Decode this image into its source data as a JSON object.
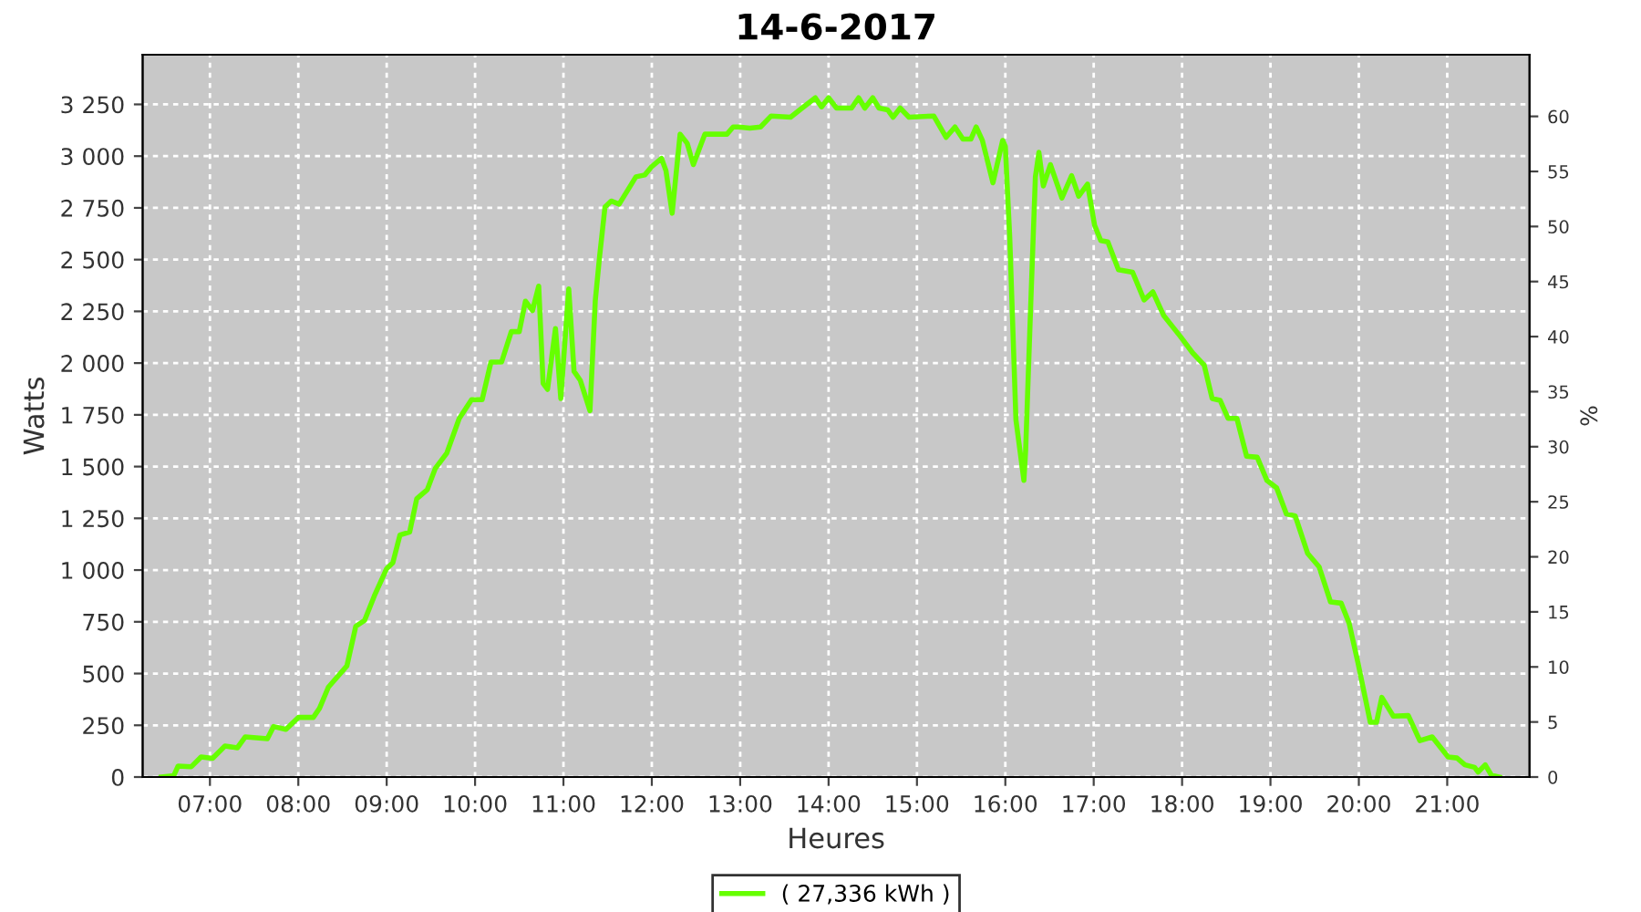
{
  "chart_data": {
    "type": "line",
    "title": "14-6-2017",
    "xlabel": "Heures",
    "ylabel": "Watts",
    "y2label": "%",
    "xlim": [
      6.24,
      21.93
    ],
    "xticks": [
      {
        "value": 7,
        "label": "07:00"
      },
      {
        "value": 8,
        "label": "08:00"
      },
      {
        "value": 9,
        "label": "09:00"
      },
      {
        "value": 10,
        "label": "10:00"
      },
      {
        "value": 11,
        "label": "11:00"
      },
      {
        "value": 12,
        "label": "12:00"
      },
      {
        "value": 13,
        "label": "13:00"
      },
      {
        "value": 14,
        "label": "14:00"
      },
      {
        "value": 15,
        "label": "15:00"
      },
      {
        "value": 16,
        "label": "16:00"
      },
      {
        "value": 17,
        "label": "17:00"
      },
      {
        "value": 18,
        "label": "18:00"
      },
      {
        "value": 19,
        "label": "19:00"
      },
      {
        "value": 20,
        "label": "20:00"
      },
      {
        "value": 21,
        "label": "21:00"
      }
    ],
    "ylim": [
      0,
      3490
    ],
    "yticks": [
      0,
      250,
      500,
      750,
      {
        "value": 1000,
        "label": "1 000"
      },
      {
        "value": 1250,
        "label": "1 250"
      },
      {
        "value": 1500,
        "label": "1 500"
      },
      {
        "value": 1750,
        "label": "1 750"
      },
      {
        "value": 2000,
        "label": "2 000"
      },
      {
        "value": 2250,
        "label": "2 250"
      },
      {
        "value": 2500,
        "label": "2 500"
      },
      {
        "value": 2750,
        "label": "2 750"
      },
      {
        "value": 3000,
        "label": "3 000"
      },
      {
        "value": 3250,
        "label": "3 250"
      }
    ],
    "y2lim": [
      0,
      65.6
    ],
    "y2ticks": [
      0,
      5,
      10,
      15,
      20,
      25,
      30,
      35,
      40,
      45,
      50,
      55,
      60
    ],
    "grid": true,
    "legend": "bottom",
    "marker": "none",
    "line_style": "solid",
    "series": [
      {
        "name": "( 27,336 kWh )",
        "color": "#66ff00",
        "x": [
          6.45,
          6.59,
          6.64,
          6.79,
          6.9,
          7.03,
          7.17,
          7.31,
          7.4,
          7.65,
          7.72,
          7.86,
          8.0,
          8.17,
          8.24,
          8.34,
          8.55,
          8.65,
          8.75,
          8.86,
          9.0,
          9.07,
          9.15,
          9.26,
          9.34,
          9.46,
          9.55,
          9.68,
          9.82,
          9.96,
          10.08,
          10.18,
          10.3,
          10.41,
          10.5,
          10.57,
          10.65,
          10.72,
          10.77,
          10.82,
          10.91,
          10.97,
          11.06,
          11.12,
          11.19,
          11.3,
          11.36,
          11.41,
          11.47,
          11.54,
          11.63,
          11.82,
          11.92,
          12.0,
          12.11,
          12.16,
          12.23,
          12.32,
          12.4,
          12.47,
          12.6,
          12.85,
          12.92,
          12.98,
          13.11,
          13.23,
          13.35,
          13.57,
          13.7,
          13.85,
          13.92,
          14.0,
          14.09,
          14.26,
          14.34,
          14.41,
          14.5,
          14.57,
          14.67,
          14.73,
          14.81,
          14.91,
          15.19,
          15.33,
          15.43,
          15.52,
          15.61,
          15.67,
          15.74,
          15.86,
          15.97,
          16.0,
          16.05,
          16.12,
          16.21,
          16.23,
          16.29,
          16.34,
          16.38,
          16.43,
          16.51,
          16.64,
          16.75,
          16.83,
          16.93,
          17.01,
          17.08,
          17.16,
          17.28,
          17.44,
          17.57,
          17.67,
          17.79,
          17.98,
          18.12,
          18.25,
          18.34,
          18.43,
          18.52,
          18.62,
          18.73,
          18.85,
          18.96,
          19.07,
          19.18,
          19.28,
          19.42,
          19.55,
          19.68,
          19.8,
          19.89,
          19.99,
          20.13,
          20.2,
          20.26,
          20.39,
          20.56,
          20.69,
          20.83,
          21.01,
          21.11,
          21.2,
          21.31,
          21.35,
          21.43,
          21.5,
          21.59
        ],
        "values": [
          0,
          6,
          53,
          50,
          97,
          90,
          150,
          141,
          194,
          185,
          244,
          230,
          288,
          288,
          332,
          434,
          537,
          728,
          757,
          875,
          1007,
          1036,
          1169,
          1184,
          1345,
          1389,
          1491,
          1565,
          1732,
          1823,
          1823,
          2005,
          2005,
          2152,
          2152,
          2299,
          2254,
          2372,
          1902,
          1873,
          2167,
          1829,
          2358,
          1960,
          1917,
          1770,
          2300,
          2519,
          2754,
          2783,
          2768,
          2900,
          2909,
          2950,
          2989,
          2930,
          2724,
          3106,
          3062,
          2959,
          3106,
          3106,
          3141,
          3141,
          3135,
          3141,
          3194,
          3188,
          3232,
          3282,
          3238,
          3282,
          3232,
          3232,
          3282,
          3232,
          3282,
          3232,
          3223,
          3188,
          3232,
          3188,
          3194,
          3091,
          3141,
          3082,
          3082,
          3141,
          3076,
          2871,
          3076,
          3047,
          2607,
          1726,
          1433,
          1580,
          2314,
          2900,
          3018,
          2856,
          2959,
          2798,
          2906,
          2806,
          2865,
          2666,
          2592,
          2586,
          2451,
          2439,
          2305,
          2344,
          2231,
          2129,
          2049,
          1990,
          1829,
          1820,
          1733,
          1733,
          1550,
          1545,
          1433,
          1397,
          1271,
          1262,
          1081,
          1016,
          846,
          840,
          743,
          552,
          264,
          264,
          385,
          294,
          297,
          176,
          194,
          97,
          92,
          59,
          47,
          24,
          59,
          9,
          0
        ]
      }
    ]
  }
}
